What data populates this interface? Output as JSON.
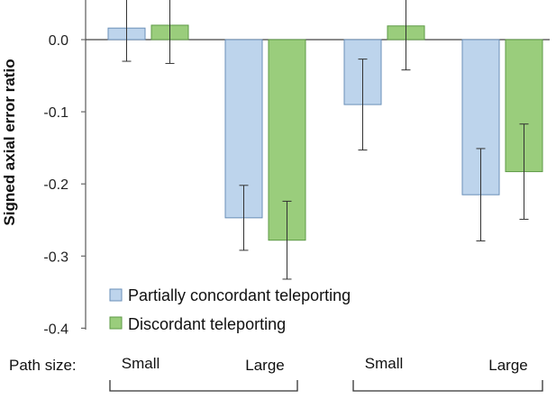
{
  "chart_data": {
    "type": "bar",
    "ylabel": "Signed axial error ratio",
    "ylim": [
      -0.4,
      0.05
    ],
    "yticks": [
      "0.0",
      "-0.1",
      "-0.2",
      "-0.3",
      "-0.4"
    ],
    "ytick_values": [
      0.0,
      -0.1,
      -0.2,
      -0.3,
      -0.4
    ],
    "path_size_label": "Path size:",
    "categories": [
      "Small",
      "Large",
      "Small",
      "Large"
    ],
    "series": [
      {
        "name": "Partially concordant teleporting",
        "color": "#bdd4ec",
        "values": [
          0.016,
          -0.247,
          -0.09,
          -0.215
        ],
        "errors": [
          0.046,
          0.045,
          0.063,
          0.064
        ]
      },
      {
        "name": "Discordant teleporting",
        "color": "#9acd7c",
        "values": [
          0.02,
          -0.278,
          0.019,
          -0.183
        ],
        "errors": [
          0.053,
          0.054,
          0.061,
          0.066
        ]
      }
    ],
    "legend": "inside-bottom-left",
    "grid": false
  }
}
